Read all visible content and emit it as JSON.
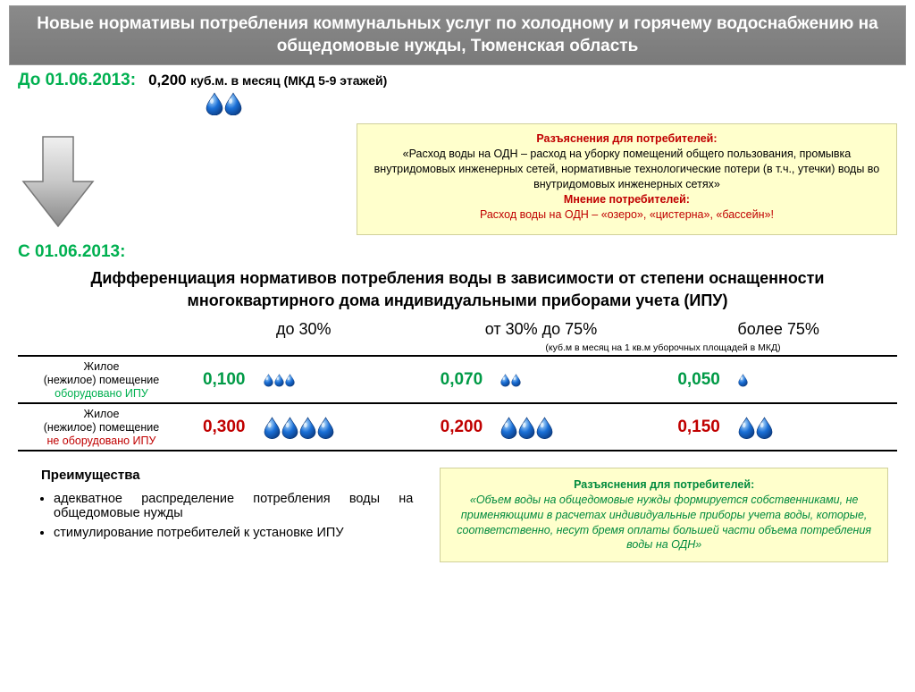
{
  "colors": {
    "green": "#00b050",
    "darkgreen": "#008a3e",
    "red": "#c00000",
    "yellowbox": "#ffffcc",
    "headerGrad1": "#8a8a8a",
    "headerGrad2": "#7a7a7a",
    "black": "#000000"
  },
  "header": "Новые нормативы потребления коммунальных услуг по холодному и горячему водоснабжению на общедомовые нужды, Тюменская область",
  "before": {
    "label": "До 01.06.2013:",
    "value": "0,200",
    "unit": "куб.м. в месяц (МКД 5-9 этажей)",
    "drops": 2
  },
  "explain1": {
    "title": "Разъяснения для потребителей:",
    "body": "«Расход воды на ОДН – расход на уборку помещений общего пользования, промывка внутридомовых инженерных сетей, нормативные технологические потери (в т.ч., утечки) воды во внутридомовых инженерных сетях»",
    "opinionTitle": "Мнение потребителей:",
    "opinionBody": "Расход воды на ОДН – «озеро», «цистерна», «бассейн»!"
  },
  "after": {
    "label": "С 01.06.2013:"
  },
  "diffText": "Дифференциация нормативов потребления воды в зависимости от степени оснащенности многоквартирного дома индивидуальными приборами учета (ИПУ)",
  "table": {
    "columns": [
      "до 30%",
      "от 30% до 75%",
      "более 75%"
    ],
    "unitNote": "(куб.м в месяц на 1 кв.м уборочных площадей в МКД)",
    "rows": [
      {
        "label1": "Жилое",
        "label2": "(нежилое) помещение",
        "label3": "оборудовано ИПУ",
        "equipped": true,
        "cells": [
          {
            "v": "0,100",
            "d": 3
          },
          {
            "v": "0,070",
            "d": 2
          },
          {
            "v": "0,050",
            "d": 1
          }
        ]
      },
      {
        "label1": "Жилое",
        "label2": "(нежилое) помещение",
        "label3": "не оборудовано ИПУ",
        "equipped": false,
        "cells": [
          {
            "v": "0,300",
            "d": 4
          },
          {
            "v": "0,200",
            "d": 3
          },
          {
            "v": "0,150",
            "d": 2
          }
        ]
      }
    ]
  },
  "advantages": {
    "title": "Преимущества",
    "items": [
      "адекватное распределение потребления воды на общедомовые нужды",
      "стимулирование потребителей к установке ИПУ"
    ]
  },
  "explain2": {
    "title": "Разъяснения для потребителей:",
    "body": "«Объем воды на общедомовые нужды формируется собственниками, не применяющими в расчетах индивидуальные приборы учета воды, которые, соответственно, несут бремя оплаты большей части объема потребления воды на ОДН»"
  }
}
